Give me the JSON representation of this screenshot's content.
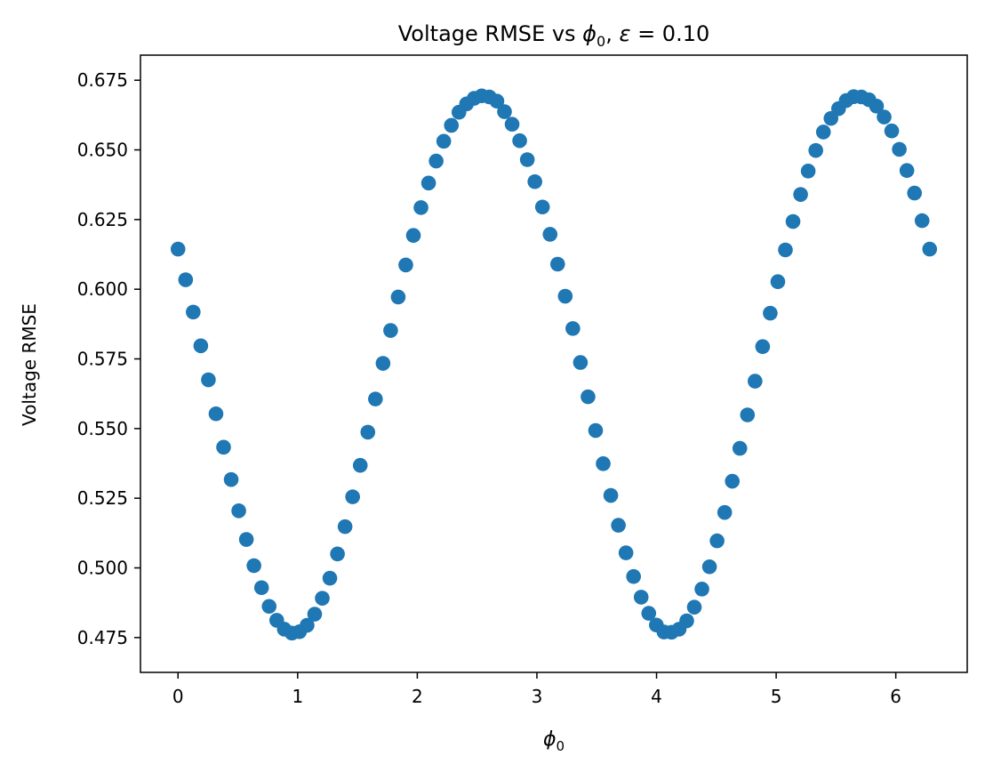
{
  "chart_data": {
    "type": "scatter",
    "title_prefix": "Voltage RMSE vs ",
    "title_phi": "ϕ",
    "title_phi_sub": "0",
    "title_middle": ", ",
    "title_eps": "ε",
    "title_eps_value": " = 0.10",
    "xlabel_main": "ϕ",
    "xlabel_sub": "0",
    "ylabel": "Voltage RMSE",
    "xlim": [
      -0.314,
      6.597
    ],
    "ylim": [
      0.4625,
      0.684
    ],
    "xticks": [
      0,
      1,
      2,
      3,
      4,
      5,
      6
    ],
    "xtick_labels": [
      "0",
      "1",
      "2",
      "3",
      "4",
      "5",
      "6"
    ],
    "yticks": [
      0.475,
      0.5,
      0.525,
      0.55,
      0.575,
      0.6,
      0.625,
      0.65,
      0.675
    ],
    "ytick_labels": [
      "0.475",
      "0.500",
      "0.525",
      "0.550",
      "0.575",
      "0.600",
      "0.625",
      "0.650",
      "0.675"
    ],
    "grid": false,
    "marker_color": "#1f77b4",
    "series": [
      {
        "x": [
          0.0,
          0.0637,
          0.1269,
          0.1904,
          0.2539,
          0.3173,
          0.3808,
          0.4443,
          0.5077,
          0.5712,
          0.6347,
          0.6981,
          0.7616,
          0.8251,
          0.8885,
          0.952,
          1.0155,
          1.0789,
          1.1424,
          1.2059,
          1.2693,
          1.3328,
          1.3963,
          1.4597,
          1.5232,
          1.5867,
          1.6501,
          1.7136,
          1.7771,
          1.8405,
          1.904,
          1.9675,
          2.0309,
          2.0944,
          2.1579,
          2.2213,
          2.2848,
          2.3483,
          2.4117,
          2.4752,
          2.5387,
          2.6021,
          2.6656,
          2.7291,
          2.7925,
          2.856,
          2.9195,
          2.9829,
          3.0464,
          3.1099,
          3.1733,
          3.2368,
          3.3003,
          3.3637,
          3.4272,
          3.4907,
          3.5541,
          3.6176,
          3.6811,
          3.7445,
          3.808,
          3.8715,
          3.9349,
          3.9984,
          4.0619,
          4.1253,
          4.1888,
          4.2523,
          4.3157,
          4.3792,
          4.4427,
          4.5061,
          4.5696,
          4.6331,
          4.6965,
          4.76,
          4.8235,
          4.8869,
          4.9504,
          5.0139,
          5.0773,
          5.1408,
          5.2043,
          5.2677,
          5.3312,
          5.3947,
          5.4581,
          5.5216,
          5.5851,
          5.6485,
          5.712,
          5.7755,
          5.8389,
          5.9024,
          5.9659,
          6.0293,
          6.0928,
          6.1563,
          6.2197,
          6.2832
        ],
        "y": [
          0.6144,
          0.6034,
          0.5918,
          0.5797,
          0.5675,
          0.5553,
          0.5433,
          0.5317,
          0.5205,
          0.5102,
          0.5008,
          0.4929,
          0.4862,
          0.4812,
          0.478,
          0.4766,
          0.4771,
          0.4794,
          0.4834,
          0.4891,
          0.4963,
          0.505,
          0.5148,
          0.5255,
          0.5368,
          0.5487,
          0.5606,
          0.5734,
          0.5852,
          0.5972,
          0.6087,
          0.6193,
          0.6293,
          0.6381,
          0.646,
          0.6531,
          0.6588,
          0.6635,
          0.6665,
          0.6685,
          0.6694,
          0.669,
          0.6675,
          0.6637,
          0.6592,
          0.6533,
          0.6465,
          0.6386,
          0.6295,
          0.6197,
          0.609,
          0.5975,
          0.5859,
          0.5737,
          0.5614,
          0.5493,
          0.5374,
          0.526,
          0.5153,
          0.5054,
          0.4969,
          0.4895,
          0.4837,
          0.4795,
          0.477,
          0.4769,
          0.478,
          0.481,
          0.4859,
          0.4924,
          0.5004,
          0.5097,
          0.5199,
          0.5311,
          0.5429,
          0.5549,
          0.567,
          0.5794,
          0.5914,
          0.6027,
          0.6141,
          0.6243,
          0.634,
          0.6424,
          0.6498,
          0.6564,
          0.6613,
          0.6648,
          0.6677,
          0.6691,
          0.669,
          0.668,
          0.6657,
          0.6618,
          0.6568,
          0.6502,
          0.6426,
          0.6345,
          0.6246,
          0.6144
        ]
      }
    ]
  }
}
